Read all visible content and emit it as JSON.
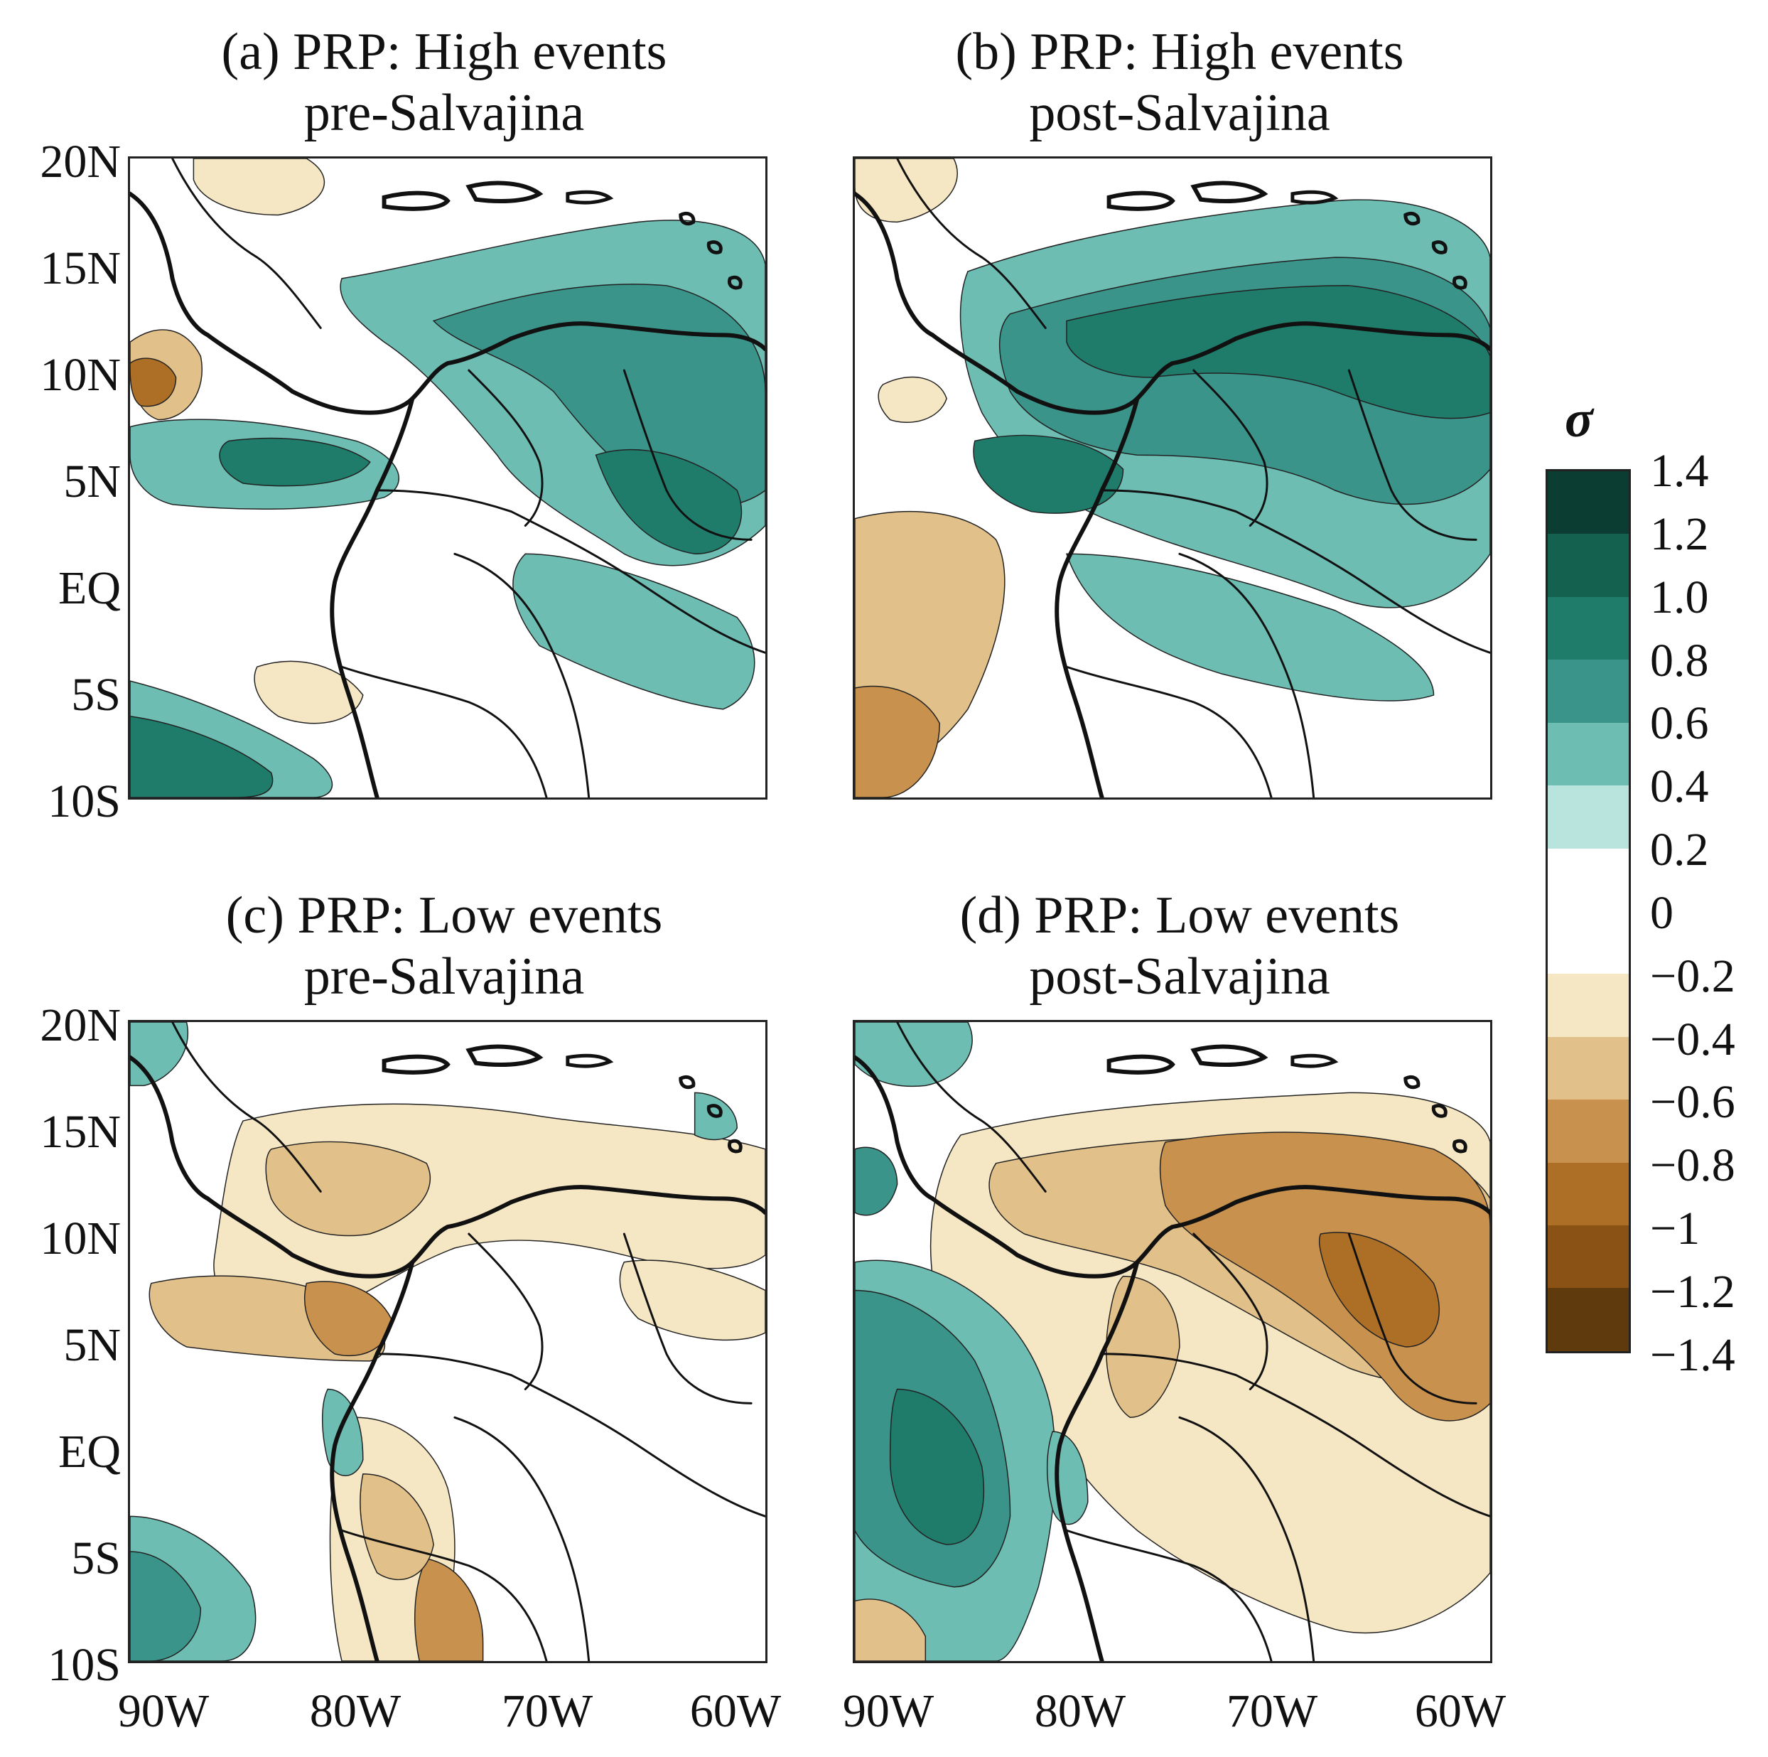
{
  "panels": [
    {
      "title_line1": "(a) PRP: High events",
      "title_line2": "pre-Salvajina",
      "pattern": "high_pre"
    },
    {
      "title_line1": "(b) PRP: High events",
      "title_line2": "post-Salvajina",
      "pattern": "high_post"
    },
    {
      "title_line1": "(c) PRP: Low events",
      "title_line2": "pre-Salvajina",
      "pattern": "low_pre"
    },
    {
      "title_line1": "(d) PRP: Low events",
      "title_line2": "post-Salvajina",
      "pattern": "low_post"
    }
  ],
  "axes": {
    "lat_ticks": [
      "20N",
      "15N",
      "10N",
      "5N",
      "EQ",
      "5S",
      "10S"
    ],
    "lon_ticks": [
      "90W",
      "80W",
      "70W",
      "60W"
    ]
  },
  "colorbar": {
    "title": "σ",
    "labels": [
      "1.4",
      "1.2",
      "1.0",
      "0.8",
      "0.6",
      "0.4",
      "0.2",
      "0",
      "−0.2",
      "−0.4",
      "−0.6",
      "−0.8",
      "−1",
      "−1.2",
      "−1.4"
    ],
    "colors": [
      "#0b3d33",
      "#14614f",
      "#1f7b6a",
      "#3b948a",
      "#6dbdb3",
      "#b9e3dd",
      "#ffffff",
      "#ffffff",
      "#f6e7c4",
      "#e1c089",
      "#c8914d",
      "#ad6f26",
      "#8a5214",
      "#5e3a0c"
    ]
  },
  "colors": {
    "pos_strong": "#1f7b6a",
    "pos_medium": "#3b948a",
    "pos_light": "#6dbdb3",
    "pos_faint": "#b9e3dd",
    "neg_faint": "#f6e7c4",
    "neg_light": "#e1c089",
    "neg_medium": "#c8914d",
    "neg_strong": "#ad6f26",
    "coast": "#111111"
  }
}
